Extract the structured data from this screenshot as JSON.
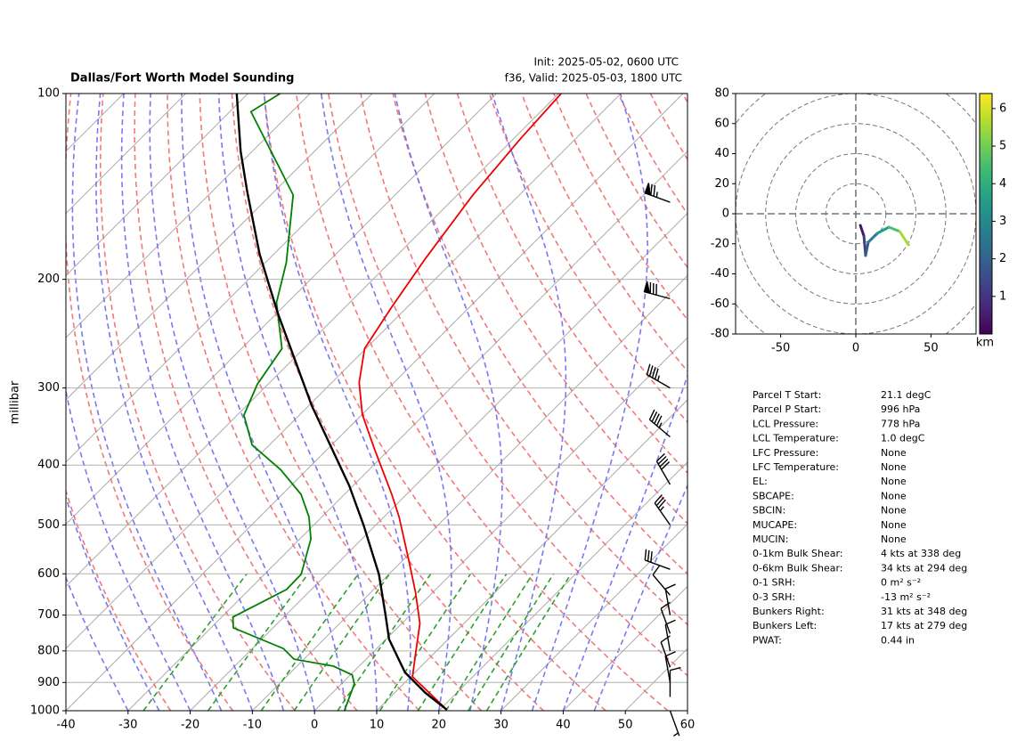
{
  "chart_data": [
    {
      "type": "skewt",
      "title": "Dallas/Fort Worth Model Sounding",
      "init": "Init: 2025-05-02, 0600 UTC",
      "valid": "f36, Valid: 2025-05-03, 1800 UTC",
      "ylabel": "millibar",
      "xlim": [
        -40,
        60
      ],
      "xticks": [
        -40,
        -30,
        -20,
        -10,
        0,
        10,
        20,
        30,
        40,
        50,
        60
      ],
      "ylim": [
        1000,
        100
      ],
      "yticks": [
        100,
        200,
        300,
        400,
        500,
        600,
        700,
        800,
        900,
        1000
      ],
      "log_y": true,
      "grid": true,
      "series": [
        {
          "color": "#ee0000",
          "pressure": [
            996,
            881,
            811,
            722,
            643,
            572,
            485,
            446,
            377,
            331,
            294,
            259,
            222,
            185,
            146,
            118,
            100
          ],
          "values": [
            21.1,
            10.3,
            7.2,
            2.9,
            -2.8,
            -8.9,
            -17.6,
            -22.4,
            -32.4,
            -40.0,
            -45.6,
            -50.2,
            -52.5,
            -54.9,
            -57.5,
            -58.9,
            -59.6
          ]
        },
        {
          "color": "#008000",
          "pressure": [
            1000,
            905,
            875,
            847,
            825,
            793,
            734,
            705,
            636,
            601,
            527,
            485,
            446,
            407,
            371,
            332,
            296,
            259,
            218,
            188,
            146,
            107,
            100
          ],
          "values": [
            4.8,
            2.1,
            0.3,
            -4.1,
            -11.6,
            -15.0,
            -26.4,
            -28.2,
            -24.0,
            -24.1,
            -28.2,
            -32.1,
            -37.0,
            -44.2,
            -52.8,
            -58.9,
            -61.7,
            -63.5,
            -71.8,
            -76.6,
            -86.4,
            -106.6,
            -104.8
          ]
        },
        {
          "color": "#000000",
          "pressure": [
            996,
            936,
            867,
            766,
            698,
            601,
            501,
            432,
            320,
            226,
            182,
            144,
            124,
            100
          ],
          "values": [
            21.1,
            15.0,
            8.4,
            0.5,
            -4.1,
            -11.6,
            -21.9,
            -30.6,
            -49.6,
            -70.1,
            -82.3,
            -94.4,
            -101.9,
            -111.8
          ]
        }
      ],
      "wind": {
        "pressure": [
          150,
          215,
          300,
          360,
          430,
          500,
          590,
          650,
          700,
          750,
          800,
          850,
          900,
          950,
          1000
        ],
        "speed": [
          75,
          80,
          45,
          45,
          40,
          35,
          30,
          10,
          10,
          10,
          10,
          10,
          10,
          10,
          5
        ],
        "direction": [
          290,
          285,
          300,
          310,
          330,
          325,
          290,
          320,
          350,
          340,
          350,
          340,
          350,
          0,
          160
        ]
      }
    },
    {
      "type": "hodograph",
      "xlim": [
        -80,
        80
      ],
      "xticks": [
        -50,
        0,
        50
      ],
      "ylim": [
        -80,
        80
      ],
      "yticks": [
        -80,
        -60,
        -40,
        -20,
        0,
        20,
        40,
        60,
        80
      ],
      "u": [
        3.0,
        5.4,
        6.5,
        8.3,
        14.3,
        22.0,
        29.2,
        35.1
      ],
      "v": [
        -7.7,
        -14.8,
        -27.8,
        -18.9,
        -13.0,
        -8.9,
        -11.8,
        -20.7
      ],
      "height": [
        0,
        0.8,
        1.5,
        2.2,
        3.0,
        4.0,
        5.0,
        6.0
      ],
      "colormap": "viridis",
      "clim": [
        0,
        6.4
      ],
      "cticks": [
        1,
        2,
        3,
        4,
        5,
        6
      ],
      "colorbar_label": "km"
    }
  ],
  "parameters": [
    {
      "label": "Parcel T Start:",
      "value": "21.1 degC"
    },
    {
      "label": "Parcel P Start:",
      "value": "996 hPa"
    },
    {
      "label": "LCL Pressure:",
      "value": "778 hPa"
    },
    {
      "label": "LCL Temperature:",
      "value": "1.0 degC"
    },
    {
      "label": "LFC Pressure:",
      "value": "None"
    },
    {
      "label": "LFC Temperature:",
      "value": "None"
    },
    {
      "label": "EL:",
      "value": "None"
    },
    {
      "label": "SBCAPE:",
      "value": "None"
    },
    {
      "label": "SBCIN:",
      "value": "None"
    },
    {
      "label": "MUCAPE:",
      "value": "None"
    },
    {
      "label": "MUCIN:",
      "value": "None"
    },
    {
      "label": "0-1km Bulk Shear:",
      "value": "4 kts at 338 deg"
    },
    {
      "label": "0-6km Bulk Shear:",
      "value": "34 kts at 294 deg"
    },
    {
      "label": "0-1 SRH:",
      "value": "0 m² s⁻²"
    },
    {
      "label": "0-3 SRH:",
      "value": "-13 m² s⁻²"
    },
    {
      "label": "Bunkers Right:",
      "value": "31 kts at 348 deg"
    },
    {
      "label": "Bunkers Left:",
      "value": "17 kts at 279 deg"
    },
    {
      "label": "PWAT:",
      "value": "0.44 in"
    }
  ]
}
